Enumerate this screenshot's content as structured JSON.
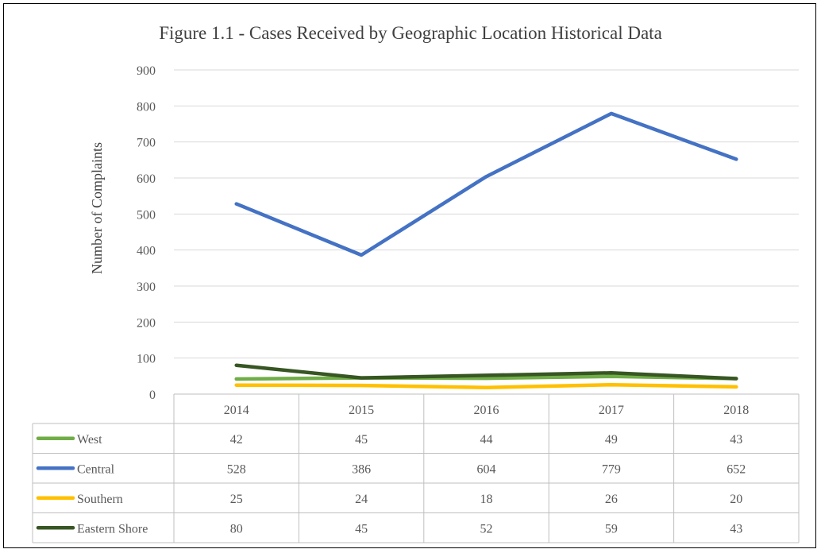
{
  "chart_data": {
    "type": "line",
    "title": "Figure 1.1 - Cases Received by Geographic Location Historical Data",
    "xlabel": "",
    "ylabel": "Number of Complaints",
    "ylim": [
      0,
      900
    ],
    "yticks": [
      "0",
      "100",
      "200",
      "300",
      "400",
      "500",
      "600",
      "700",
      "800",
      "900"
    ],
    "categories": [
      "2014",
      "2015",
      "2016",
      "2017",
      "2018"
    ],
    "grid": true,
    "legend": "data-table",
    "series": [
      {
        "name": "West",
        "color": "#70ad47",
        "values": [
          42,
          45,
          44,
          49,
          43
        ],
        "labels": [
          "42",
          "45",
          "44",
          "49",
          "43"
        ]
      },
      {
        "name": "Central",
        "color": "#4472c4",
        "values": [
          528,
          386,
          604,
          779,
          652
        ],
        "labels": [
          "528",
          "386",
          "604",
          "779",
          "652"
        ]
      },
      {
        "name": "Southern",
        "color": "#ffc000",
        "values": [
          25,
          24,
          18,
          26,
          20
        ],
        "labels": [
          "25",
          "24",
          "18",
          "26",
          "20"
        ]
      },
      {
        "name": "Eastern Shore",
        "color": "#375623",
        "values": [
          80,
          45,
          52,
          59,
          43
        ],
        "labels": [
          "80",
          "45",
          "52",
          "59",
          "43"
        ]
      }
    ]
  }
}
